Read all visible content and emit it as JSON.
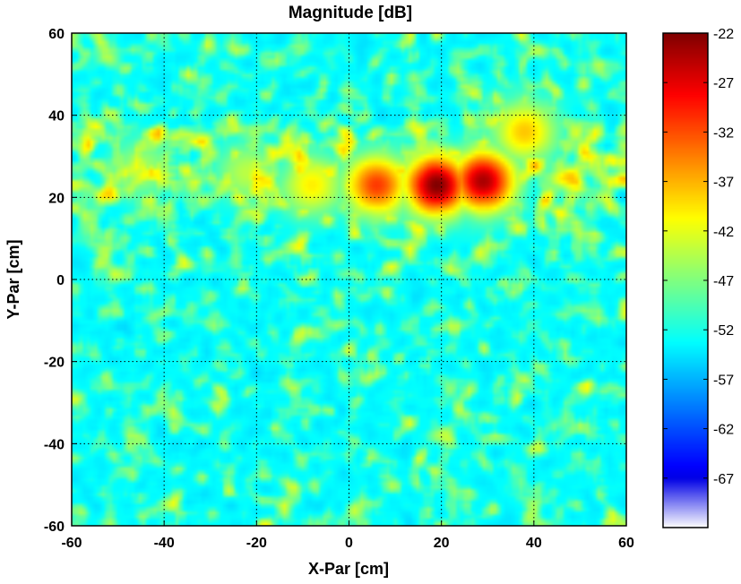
{
  "chart_data": {
    "type": "heatmap",
    "title": "Magnitude [dB]",
    "xlabel": "X-Par [cm]",
    "ylabel": "Y-Par [cm]",
    "xlim": [
      -60,
      60
    ],
    "ylim": [
      -60,
      60
    ],
    "x_ticks": [
      "-60",
      "-40",
      "-20",
      "0",
      "20",
      "40",
      "60"
    ],
    "y_ticks": [
      "60",
      "40",
      "20",
      "0",
      "-20",
      "-40",
      "-60"
    ],
    "grid": true,
    "colormap": "jet",
    "colorbar": {
      "range": [
        -72,
        -22
      ],
      "ticks": [
        "-22",
        "-27",
        "-32",
        "-37",
        "-42",
        "-47",
        "-52",
        "-57",
        "-62",
        "-67"
      ]
    },
    "background_level": -53,
    "peaks": [
      {
        "x": 19,
        "y": 23,
        "value": -22
      },
      {
        "x": 29,
        "y": 24,
        "value": -24
      },
      {
        "x": 6,
        "y": 23,
        "value": -31
      },
      {
        "x": -8,
        "y": 23,
        "value": -40
      },
      {
        "x": -22,
        "y": 26,
        "value": -44
      },
      {
        "x": 38,
        "y": 36,
        "value": -38
      },
      {
        "x": -45,
        "y": 27,
        "value": -45
      }
    ]
  }
}
